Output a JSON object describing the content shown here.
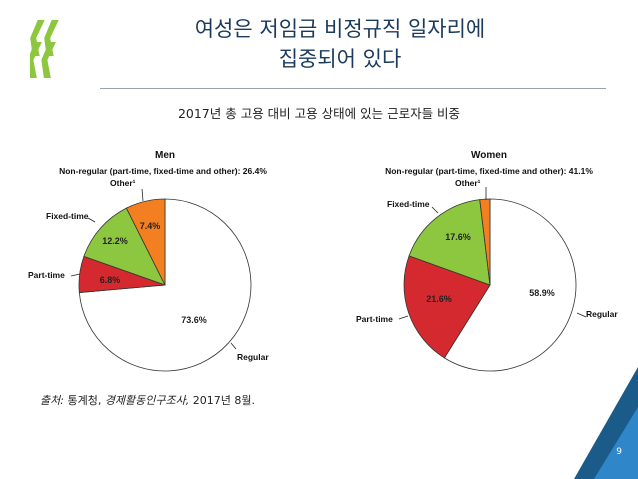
{
  "title_line1": "여성은 저임금 비정규직 일자리에",
  "title_line2": "집중되어 있다",
  "subtitle": "2017년 총 고용 대비 고용 상태에 있는 근로자들 비중",
  "source": {
    "prefix": "출처:",
    "org": "통계청,",
    "survey": "경제활동인구조사,",
    "date": "2017년 8월."
  },
  "page_number": "9",
  "colors": {
    "regular": "#ffffff",
    "part_time": "#d42a2f",
    "fixed_term": "#8dc63f",
    "other": "#f47f20",
    "corner_dark": "#1b5b8a",
    "corner_light": "#2f86c8"
  },
  "chart_data": [
    {
      "type": "pie",
      "title": "Men",
      "note": "Non-regular (part-time, fixed-time and other): 26.4%",
      "categories": [
        "Regular",
        "Part-time",
        "Fixed-time",
        "Other¹"
      ],
      "values": [
        73.6,
        6.8,
        12.2,
        7.4
      ],
      "value_labels": [
        "73.6%",
        "6.8%",
        "12.2%",
        "7.4%"
      ]
    },
    {
      "type": "pie",
      "title": "Women",
      "note": "Non-regular (part-time, fixed-time and other): 41.1%",
      "categories": [
        "Regular",
        "Part-time",
        "Fixed-time",
        "Other¹"
      ],
      "values": [
        58.9,
        21.6,
        17.6,
        1.9
      ],
      "value_labels": [
        "58.9%",
        "21.6%",
        "17.6%",
        ""
      ]
    }
  ]
}
